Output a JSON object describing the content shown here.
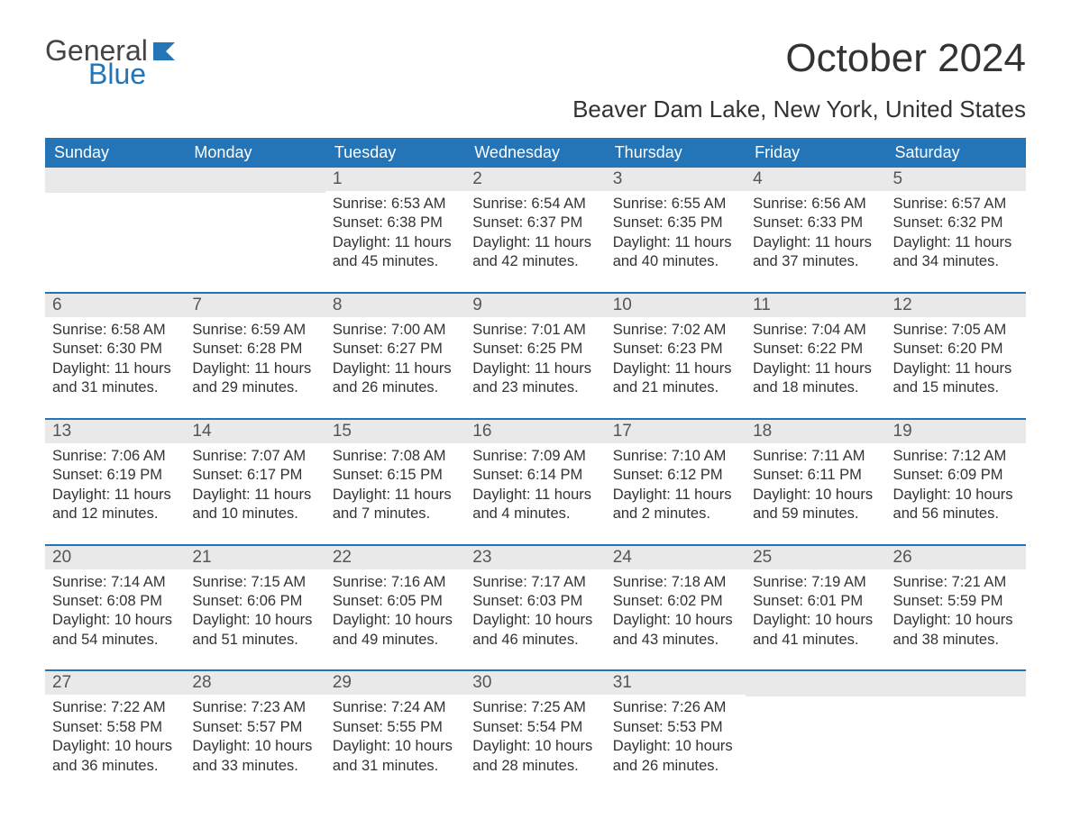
{
  "logo": {
    "general": "General",
    "blue": "Blue"
  },
  "title": "October 2024",
  "subtitle": "Beaver Dam Lake, New York, United States",
  "colors": {
    "header_bg": "#2474b8",
    "header_text": "#ffffff",
    "daynum_bg": "#e9e9e9",
    "week_border": "#2474b8",
    "body_text": "#333333",
    "page_bg": "#ffffff"
  },
  "day_names": [
    "Sunday",
    "Monday",
    "Tuesday",
    "Wednesday",
    "Thursday",
    "Friday",
    "Saturday"
  ],
  "weeks": [
    [
      null,
      null,
      {
        "n": "1",
        "sr": "6:53 AM",
        "ss": "6:38 PM",
        "dl": "11 hours and 45 minutes."
      },
      {
        "n": "2",
        "sr": "6:54 AM",
        "ss": "6:37 PM",
        "dl": "11 hours and 42 minutes."
      },
      {
        "n": "3",
        "sr": "6:55 AM",
        "ss": "6:35 PM",
        "dl": "11 hours and 40 minutes."
      },
      {
        "n": "4",
        "sr": "6:56 AM",
        "ss": "6:33 PM",
        "dl": "11 hours and 37 minutes."
      },
      {
        "n": "5",
        "sr": "6:57 AM",
        "ss": "6:32 PM",
        "dl": "11 hours and 34 minutes."
      }
    ],
    [
      {
        "n": "6",
        "sr": "6:58 AM",
        "ss": "6:30 PM",
        "dl": "11 hours and 31 minutes."
      },
      {
        "n": "7",
        "sr": "6:59 AM",
        "ss": "6:28 PM",
        "dl": "11 hours and 29 minutes."
      },
      {
        "n": "8",
        "sr": "7:00 AM",
        "ss": "6:27 PM",
        "dl": "11 hours and 26 minutes."
      },
      {
        "n": "9",
        "sr": "7:01 AM",
        "ss": "6:25 PM",
        "dl": "11 hours and 23 minutes."
      },
      {
        "n": "10",
        "sr": "7:02 AM",
        "ss": "6:23 PM",
        "dl": "11 hours and 21 minutes."
      },
      {
        "n": "11",
        "sr": "7:04 AM",
        "ss": "6:22 PM",
        "dl": "11 hours and 18 minutes."
      },
      {
        "n": "12",
        "sr": "7:05 AM",
        "ss": "6:20 PM",
        "dl": "11 hours and 15 minutes."
      }
    ],
    [
      {
        "n": "13",
        "sr": "7:06 AM",
        "ss": "6:19 PM",
        "dl": "11 hours and 12 minutes."
      },
      {
        "n": "14",
        "sr": "7:07 AM",
        "ss": "6:17 PM",
        "dl": "11 hours and 10 minutes."
      },
      {
        "n": "15",
        "sr": "7:08 AM",
        "ss": "6:15 PM",
        "dl": "11 hours and 7 minutes."
      },
      {
        "n": "16",
        "sr": "7:09 AM",
        "ss": "6:14 PM",
        "dl": "11 hours and 4 minutes."
      },
      {
        "n": "17",
        "sr": "7:10 AM",
        "ss": "6:12 PM",
        "dl": "11 hours and 2 minutes."
      },
      {
        "n": "18",
        "sr": "7:11 AM",
        "ss": "6:11 PM",
        "dl": "10 hours and 59 minutes."
      },
      {
        "n": "19",
        "sr": "7:12 AM",
        "ss": "6:09 PM",
        "dl": "10 hours and 56 minutes."
      }
    ],
    [
      {
        "n": "20",
        "sr": "7:14 AM",
        "ss": "6:08 PM",
        "dl": "10 hours and 54 minutes."
      },
      {
        "n": "21",
        "sr": "7:15 AM",
        "ss": "6:06 PM",
        "dl": "10 hours and 51 minutes."
      },
      {
        "n": "22",
        "sr": "7:16 AM",
        "ss": "6:05 PM",
        "dl": "10 hours and 49 minutes."
      },
      {
        "n": "23",
        "sr": "7:17 AM",
        "ss": "6:03 PM",
        "dl": "10 hours and 46 minutes."
      },
      {
        "n": "24",
        "sr": "7:18 AM",
        "ss": "6:02 PM",
        "dl": "10 hours and 43 minutes."
      },
      {
        "n": "25",
        "sr": "7:19 AM",
        "ss": "6:01 PM",
        "dl": "10 hours and 41 minutes."
      },
      {
        "n": "26",
        "sr": "7:21 AM",
        "ss": "5:59 PM",
        "dl": "10 hours and 38 minutes."
      }
    ],
    [
      {
        "n": "27",
        "sr": "7:22 AM",
        "ss": "5:58 PM",
        "dl": "10 hours and 36 minutes."
      },
      {
        "n": "28",
        "sr": "7:23 AM",
        "ss": "5:57 PM",
        "dl": "10 hours and 33 minutes."
      },
      {
        "n": "29",
        "sr": "7:24 AM",
        "ss": "5:55 PM",
        "dl": "10 hours and 31 minutes."
      },
      {
        "n": "30",
        "sr": "7:25 AM",
        "ss": "5:54 PM",
        "dl": "10 hours and 28 minutes."
      },
      {
        "n": "31",
        "sr": "7:26 AM",
        "ss": "5:53 PM",
        "dl": "10 hours and 26 minutes."
      },
      null,
      null
    ]
  ],
  "labels": {
    "sunrise": "Sunrise: ",
    "sunset": "Sunset: ",
    "daylight": "Daylight: "
  }
}
